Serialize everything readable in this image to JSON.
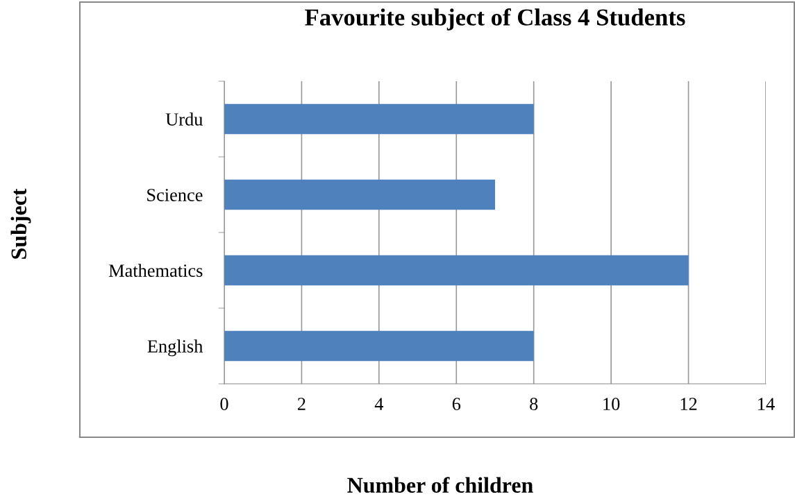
{
  "chart_data": {
    "type": "bar",
    "orientation": "horizontal",
    "title": "Favourite subject of Class 4 Students",
    "xlabel": "Number of children",
    "ylabel": "Subject",
    "categories": [
      "Urdu",
      "Science",
      "Mathematics",
      "English"
    ],
    "values": [
      8,
      7,
      12,
      8
    ],
    "color": "#4f81bd",
    "xlim": [
      0,
      14
    ],
    "xticks": [
      0,
      2,
      4,
      6,
      8,
      10,
      12,
      14
    ],
    "grid": "x",
    "legend": false
  }
}
